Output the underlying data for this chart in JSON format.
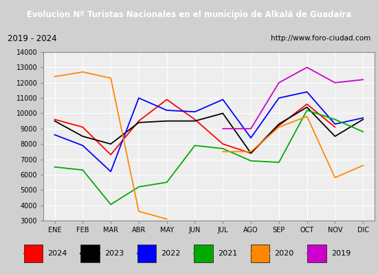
{
  "title": "Evolucion Nº Turistas Nacionales en el municipio de Alkalá de Guadaíra",
  "subtitle_left": "2019 - 2024",
  "subtitle_right": "http://www.foro-ciudad.com",
  "months": [
    "ENE",
    "FEB",
    "MAR",
    "ABR",
    "MAY",
    "JUN",
    "JUL",
    "AGO",
    "SEP",
    "OCT",
    "NOV",
    "DIC"
  ],
  "ylim": [
    3000,
    14000
  ],
  "yticks": [
    3000,
    4000,
    5000,
    6000,
    7000,
    8000,
    9000,
    10000,
    11000,
    12000,
    13000,
    14000
  ],
  "series": {
    "2024": {
      "color": "#ff0000",
      "values": [
        9600,
        9100,
        7300,
        9500,
        10900,
        9600,
        8000,
        7400,
        9200,
        10600,
        9100,
        null
      ]
    },
    "2023": {
      "color": "#000000",
      "values": [
        9500,
        8500,
        8000,
        9400,
        9500,
        9500,
        10000,
        7400,
        9300,
        10400,
        8500,
        9600
      ]
    },
    "2022": {
      "color": "#0000ff",
      "values": [
        8600,
        7900,
        6200,
        11000,
        10200,
        10100,
        10900,
        8400,
        11000,
        11400,
        9300,
        9700
      ]
    },
    "2021": {
      "color": "#00aa00",
      "values": [
        6500,
        6300,
        4050,
        5200,
        5500,
        7900,
        7700,
        6900,
        6800,
        10200,
        9600,
        8800
      ]
    },
    "2020": {
      "color": "#ff8800",
      "values": [
        12400,
        12700,
        12300,
        3600,
        3100,
        null,
        7500,
        7500,
        9100,
        9800,
        5800,
        6600
      ]
    },
    "2019": {
      "color": "#cc00cc",
      "values": [
        null,
        null,
        null,
        null,
        null,
        null,
        9000,
        9000,
        12000,
        13000,
        12000,
        12200
      ]
    }
  },
  "legend_order": [
    "2024",
    "2023",
    "2022",
    "2021",
    "2020",
    "2019"
  ],
  "title_bg_color": "#2060c0",
  "title_text_color": "#ffffff",
  "subtitle_bg_color": "#e0e0e0",
  "plot_bg_color": "#eeeeee",
  "grid_color": "#ffffff",
  "outer_bg_color": "#d0d0d0"
}
